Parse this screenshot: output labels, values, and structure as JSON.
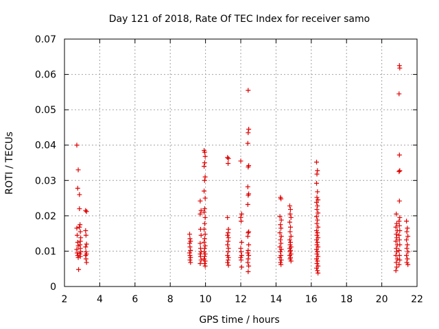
{
  "chart_data": {
    "type": "scatter",
    "title": "Day 121 of 2018, Rate Of TEC Index for receiver samo",
    "xlabel": "GPS time / hours",
    "ylabel": "ROTI / TECUs",
    "xlim": [
      2,
      22
    ],
    "ylim": [
      0,
      0.07
    ],
    "xticks": [
      2,
      4,
      6,
      8,
      10,
      12,
      14,
      16,
      18,
      20,
      22
    ],
    "yticks": [
      0,
      0.01,
      0.02,
      0.03,
      0.04,
      0.05,
      0.06,
      0.07
    ],
    "ytick_labels": [
      "0",
      "0.01",
      "0.02",
      "0.03",
      "0.04",
      "0.05",
      "0.06",
      "0.07"
    ],
    "grid": true,
    "marker": "plus",
    "colors": {
      "series": "#e00000",
      "grid": "#a0a0a0",
      "axes": "#000000"
    },
    "series": [
      {
        "name": "ROTI",
        "points": [
          [
            2.7,
            0.04
          ],
          [
            2.75,
            0.0278
          ],
          [
            2.78,
            0.033
          ],
          [
            2.7,
            0.0165
          ],
          [
            2.72,
            0.0145
          ],
          [
            2.75,
            0.0125
          ],
          [
            2.78,
            0.0115
          ],
          [
            2.7,
            0.0105
          ],
          [
            2.72,
            0.0095
          ],
          [
            2.75,
            0.0088
          ],
          [
            2.78,
            0.0082
          ],
          [
            2.8,
            0.0048
          ],
          [
            2.85,
            0.026
          ],
          [
            2.85,
            0.022
          ],
          [
            2.88,
            0.0175
          ],
          [
            2.85,
            0.0168
          ],
          [
            2.9,
            0.0155
          ],
          [
            2.92,
            0.0138
          ],
          [
            2.9,
            0.0128
          ],
          [
            2.88,
            0.0118
          ],
          [
            2.9,
            0.0108
          ],
          [
            2.92,
            0.0098
          ],
          [
            2.88,
            0.0092
          ],
          [
            2.9,
            0.0085
          ],
          [
            3.2,
            0.0215
          ],
          [
            3.25,
            0.0212
          ],
          [
            3.2,
            0.0158
          ],
          [
            3.22,
            0.0145
          ],
          [
            3.25,
            0.012
          ],
          [
            3.2,
            0.0112
          ],
          [
            3.22,
            0.0098
          ],
          [
            3.25,
            0.0092
          ],
          [
            3.2,
            0.0088
          ],
          [
            3.22,
            0.0078
          ],
          [
            3.25,
            0.0068
          ],
          [
            9.1,
            0.0148
          ],
          [
            9.12,
            0.0135
          ],
          [
            9.15,
            0.0128
          ],
          [
            9.1,
            0.0122
          ],
          [
            9.12,
            0.0112
          ],
          [
            9.15,
            0.0102
          ],
          [
            9.1,
            0.0095
          ],
          [
            9.12,
            0.0088
          ],
          [
            9.15,
            0.0082
          ],
          [
            9.12,
            0.0075
          ],
          [
            9.15,
            0.0068
          ],
          [
            9.7,
            0.0242
          ],
          [
            9.75,
            0.0215
          ],
          [
            9.7,
            0.0205
          ],
          [
            9.72,
            0.0162
          ],
          [
            9.75,
            0.0145
          ],
          [
            9.7,
            0.0122
          ],
          [
            9.72,
            0.0108
          ],
          [
            9.75,
            0.0098
          ],
          [
            9.7,
            0.0092
          ],
          [
            9.72,
            0.0085
          ],
          [
            9.75,
            0.0075
          ],
          [
            9.7,
            0.0065
          ],
          [
            9.92,
            0.0385
          ],
          [
            9.95,
            0.038
          ],
          [
            9.98,
            0.0368
          ],
          [
            9.95,
            0.035
          ],
          [
            9.92,
            0.034
          ],
          [
            9.98,
            0.031
          ],
          [
            9.95,
            0.03
          ],
          [
            9.92,
            0.027
          ],
          [
            9.98,
            0.025
          ],
          [
            9.95,
            0.022
          ],
          [
            9.92,
            0.021
          ],
          [
            9.98,
            0.0195
          ],
          [
            9.95,
            0.0178
          ],
          [
            9.92,
            0.0162
          ],
          [
            9.98,
            0.0148
          ],
          [
            9.95,
            0.0135
          ],
          [
            9.92,
            0.0125
          ],
          [
            9.98,
            0.0115
          ],
          [
            9.95,
            0.0108
          ],
          [
            9.92,
            0.0098
          ],
          [
            9.98,
            0.0092
          ],
          [
            9.95,
            0.0085
          ],
          [
            9.92,
            0.0078
          ],
          [
            9.98,
            0.0072
          ],
          [
            9.95,
            0.0065
          ],
          [
            9.98,
            0.0058
          ],
          [
            11.25,
            0.0365
          ],
          [
            11.3,
            0.0362
          ],
          [
            11.28,
            0.0348
          ],
          [
            11.25,
            0.0195
          ],
          [
            11.3,
            0.0162
          ],
          [
            11.28,
            0.0152
          ],
          [
            11.25,
            0.0145
          ],
          [
            11.3,
            0.0138
          ],
          [
            11.28,
            0.0128
          ],
          [
            11.25,
            0.0118
          ],
          [
            11.3,
            0.0108
          ],
          [
            11.28,
            0.0098
          ],
          [
            11.25,
            0.0088
          ],
          [
            11.3,
            0.0082
          ],
          [
            11.28,
            0.0075
          ],
          [
            11.25,
            0.0068
          ],
          [
            11.3,
            0.006
          ],
          [
            12.0,
            0.0355
          ],
          [
            12.05,
            0.0205
          ],
          [
            12.0,
            0.0195
          ],
          [
            12.02,
            0.0185
          ],
          [
            12.05,
            0.0125
          ],
          [
            12.0,
            0.0108
          ],
          [
            12.02,
            0.0098
          ],
          [
            12.05,
            0.0088
          ],
          [
            12.0,
            0.0082
          ],
          [
            12.02,
            0.0075
          ],
          [
            12.05,
            0.0055
          ],
          [
            12.42,
            0.0555
          ],
          [
            12.45,
            0.0445
          ],
          [
            12.42,
            0.0435
          ],
          [
            12.4,
            0.0405
          ],
          [
            12.45,
            0.0342
          ],
          [
            12.42,
            0.0338
          ],
          [
            12.4,
            0.0282
          ],
          [
            12.45,
            0.0262
          ],
          [
            12.42,
            0.0258
          ],
          [
            12.4,
            0.0232
          ],
          [
            12.45,
            0.0155
          ],
          [
            12.42,
            0.0152
          ],
          [
            12.4,
            0.0142
          ],
          [
            12.45,
            0.0118
          ],
          [
            12.42,
            0.0102
          ],
          [
            12.4,
            0.0095
          ],
          [
            12.45,
            0.0088
          ],
          [
            12.42,
            0.0078
          ],
          [
            12.4,
            0.0068
          ],
          [
            12.45,
            0.0058
          ],
          [
            12.42,
            0.0042
          ],
          [
            14.25,
            0.0252
          ],
          [
            14.28,
            0.0248
          ],
          [
            14.22,
            0.0198
          ],
          [
            14.3,
            0.0188
          ],
          [
            14.25,
            0.0175
          ],
          [
            14.28,
            0.0165
          ],
          [
            14.22,
            0.0152
          ],
          [
            14.3,
            0.0142
          ],
          [
            14.25,
            0.0132
          ],
          [
            14.28,
            0.0122
          ],
          [
            14.22,
            0.0112
          ],
          [
            14.3,
            0.0105
          ],
          [
            14.25,
            0.0098
          ],
          [
            14.28,
            0.0088
          ],
          [
            14.22,
            0.0082
          ],
          [
            14.3,
            0.0075
          ],
          [
            14.25,
            0.0068
          ],
          [
            14.28,
            0.0062
          ],
          [
            14.78,
            0.0228
          ],
          [
            14.82,
            0.0218
          ],
          [
            14.8,
            0.0205
          ],
          [
            14.85,
            0.0195
          ],
          [
            14.78,
            0.0182
          ],
          [
            14.82,
            0.0168
          ],
          [
            14.8,
            0.0155
          ],
          [
            14.85,
            0.0142
          ],
          [
            14.78,
            0.0132
          ],
          [
            14.82,
            0.0125
          ],
          [
            14.8,
            0.0118
          ],
          [
            14.85,
            0.0112
          ],
          [
            14.78,
            0.0108
          ],
          [
            14.82,
            0.0102
          ],
          [
            14.8,
            0.0098
          ],
          [
            14.85,
            0.0092
          ],
          [
            14.78,
            0.0088
          ],
          [
            14.82,
            0.0082
          ],
          [
            14.8,
            0.0078
          ],
          [
            14.85,
            0.0072
          ],
          [
            16.3,
            0.0352
          ],
          [
            16.35,
            0.0328
          ],
          [
            16.32,
            0.0318
          ],
          [
            16.3,
            0.0292
          ],
          [
            16.35,
            0.0268
          ],
          [
            16.32,
            0.0252
          ],
          [
            16.38,
            0.0245
          ],
          [
            16.3,
            0.0238
          ],
          [
            16.35,
            0.0228
          ],
          [
            16.32,
            0.0218
          ],
          [
            16.38,
            0.0208
          ],
          [
            16.3,
            0.0198
          ],
          [
            16.35,
            0.0188
          ],
          [
            16.32,
            0.0178
          ],
          [
            16.38,
            0.0168
          ],
          [
            16.3,
            0.0158
          ],
          [
            16.35,
            0.0152
          ],
          [
            16.32,
            0.0145
          ],
          [
            16.38,
            0.0138
          ],
          [
            16.3,
            0.0132
          ],
          [
            16.35,
            0.0125
          ],
          [
            16.32,
            0.0118
          ],
          [
            16.38,
            0.0112
          ],
          [
            16.3,
            0.0105
          ],
          [
            16.35,
            0.0098
          ],
          [
            16.32,
            0.0092
          ],
          [
            16.38,
            0.0085
          ],
          [
            16.3,
            0.0078
          ],
          [
            16.35,
            0.0072
          ],
          [
            16.32,
            0.0065
          ],
          [
            16.38,
            0.0058
          ],
          [
            16.3,
            0.0052
          ],
          [
            16.35,
            0.0045
          ],
          [
            16.38,
            0.0038
          ],
          [
            20.82,
            0.0205
          ],
          [
            20.85,
            0.0178
          ],
          [
            20.8,
            0.0168
          ],
          [
            20.88,
            0.0158
          ],
          [
            20.82,
            0.0148
          ],
          [
            20.85,
            0.0138
          ],
          [
            20.8,
            0.0128
          ],
          [
            20.88,
            0.0118
          ],
          [
            20.82,
            0.0108
          ],
          [
            20.85,
            0.0098
          ],
          [
            20.8,
            0.0088
          ],
          [
            20.88,
            0.0078
          ],
          [
            20.82,
            0.0068
          ],
          [
            20.85,
            0.0055
          ],
          [
            20.8,
            0.0045
          ],
          [
            21.0,
            0.0625
          ],
          [
            21.02,
            0.0618
          ],
          [
            20.98,
            0.0545
          ],
          [
            21.0,
            0.0372
          ],
          [
            21.02,
            0.0328
          ],
          [
            20.98,
            0.0325
          ],
          [
            21.0,
            0.0242
          ],
          [
            21.02,
            0.0195
          ],
          [
            20.98,
            0.0185
          ],
          [
            21.0,
            0.0172
          ],
          [
            21.02,
            0.0158
          ],
          [
            20.98,
            0.0145
          ],
          [
            21.0,
            0.0132
          ],
          [
            21.02,
            0.0118
          ],
          [
            20.98,
            0.0102
          ],
          [
            21.0,
            0.0088
          ],
          [
            21.02,
            0.0075
          ],
          [
            20.98,
            0.0062
          ],
          [
            21.4,
            0.0185
          ],
          [
            21.45,
            0.0165
          ],
          [
            21.42,
            0.0155
          ],
          [
            21.48,
            0.0142
          ],
          [
            21.4,
            0.0132
          ],
          [
            21.45,
            0.0118
          ],
          [
            21.42,
            0.0108
          ],
          [
            21.48,
            0.0098
          ],
          [
            21.4,
            0.0088
          ],
          [
            21.45,
            0.0078
          ],
          [
            21.42,
            0.0068
          ],
          [
            21.48,
            0.0062
          ]
        ]
      }
    ]
  }
}
